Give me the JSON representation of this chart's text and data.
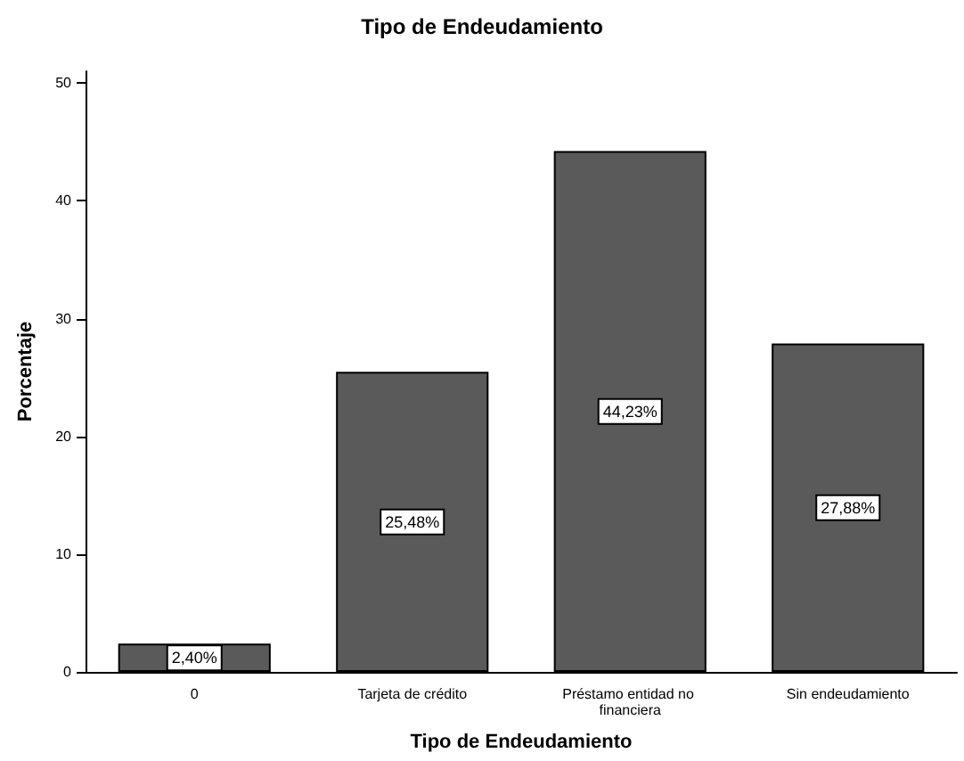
{
  "chart_data": {
    "type": "bar",
    "title": "Tipo de Endeudamiento",
    "xlabel": "Tipo de Endeudamiento",
    "ylabel": "Porcentaje",
    "categories": [
      "0",
      "Tarjeta de crédito",
      "Préstamo entidad no financiera",
      "Sin endeudamiento"
    ],
    "values": [
      2.4,
      25.48,
      44.23,
      27.88
    ],
    "value_labels": [
      "2,40%",
      "25,48%",
      "44,23%",
      "27,88%"
    ],
    "color": "#5a5a5a",
    "ylim": [
      0,
      51
    ],
    "yticks": [
      0,
      10,
      20,
      30,
      40,
      50
    ],
    "grid": false
  }
}
